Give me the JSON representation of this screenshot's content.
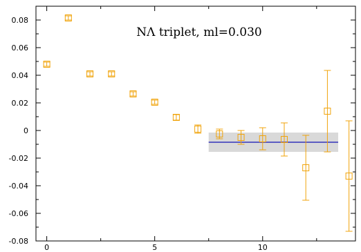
{
  "chart_data": {
    "type": "scatter",
    "title": "NΛ triplet, ml=0.030",
    "xlabel": "",
    "ylabel": "",
    "xlim": [
      -0.5,
      14.3
    ],
    "ylim": [
      -0.08,
      0.09
    ],
    "x_ticks": [
      0,
      5,
      10
    ],
    "y_ticks": [
      -0.08,
      -0.06,
      -0.04,
      -0.02,
      0,
      0.02,
      0.04,
      0.06,
      0.08
    ],
    "y_tick_labels": [
      "-0.08",
      "-0.06",
      "-0.04",
      "-0.02",
      "0",
      "0.02",
      "0.04",
      "0.06",
      "0.08"
    ],
    "grid": false,
    "legend": "none",
    "series": [
      {
        "marker": "open-square",
        "color": "#f0a30a",
        "points": [
          {
            "x": 0,
            "y": 0.048,
            "err": 0.0015
          },
          {
            "x": 1,
            "y": 0.0815,
            "err": 0.0015
          },
          {
            "x": 2,
            "y": 0.041,
            "err": 0.0015
          },
          {
            "x": 3,
            "y": 0.041,
            "err": 0.0015
          },
          {
            "x": 4,
            "y": 0.0265,
            "err": 0.0015
          },
          {
            "x": 5,
            "y": 0.0205,
            "err": 0.0015
          },
          {
            "x": 6,
            "y": 0.0095,
            "err": 0.002
          },
          {
            "x": 7,
            "y": 0.001,
            "err": 0.003
          },
          {
            "x": 8,
            "y": -0.0025,
            "err": 0.0035
          },
          {
            "x": 9,
            "y": -0.005,
            "err": 0.005
          },
          {
            "x": 10,
            "y": -0.006,
            "err": 0.008
          },
          {
            "x": 11,
            "y": -0.0065,
            "err": 0.012
          },
          {
            "x": 12,
            "y": -0.027,
            "err": 0.0235
          },
          {
            "x": 13,
            "y": 0.014,
            "err": 0.0295
          },
          {
            "x": 14,
            "y": -0.033,
            "err": 0.04
          }
        ]
      }
    ],
    "fit": {
      "x_range": [
        7.5,
        13.5
      ],
      "value": -0.0085,
      "band": [
        -0.0155,
        -0.0015
      ],
      "line_color": "#3333bb",
      "band_color": "#d9d9d9"
    }
  }
}
